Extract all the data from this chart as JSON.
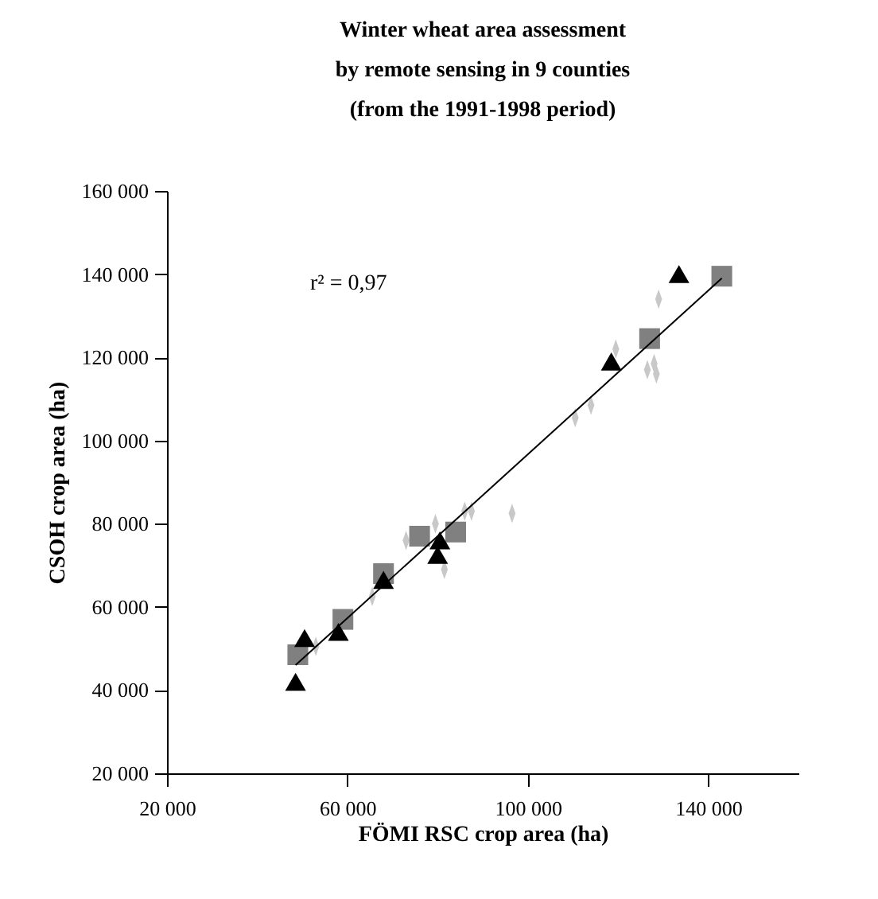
{
  "chart_data": {
    "type": "scatter",
    "title": [
      "Winter wheat area assessment",
      "by remote sensing in 9  counties",
      "(from the 1991-1998 period)"
    ],
    "xlabel": "FÖMI RSC crop area (ha)",
    "ylabel": "CSOH crop area (ha)",
    "xlim": [
      20000,
      160000
    ],
    "xticks": [
      {
        "value": 20000,
        "label": "20 000"
      },
      {
        "value": 60000,
        "label": "60 000"
      },
      {
        "value": 100000,
        "label": "100 000"
      },
      {
        "value": 140000,
        "label": "140 000"
      }
    ],
    "ylim": [
      20000,
      160000
    ],
    "yticks": [
      {
        "value": 20000,
        "label": "20 000"
      },
      {
        "value": 40000,
        "label": "40 000"
      },
      {
        "value": 60000,
        "label": "60 000"
      },
      {
        "value": 80000,
        "label": "80 000"
      },
      {
        "value": 100000,
        "label": "100 000"
      },
      {
        "value": 120000,
        "label": "120 000"
      },
      {
        "value": 140000,
        "label": "140 000"
      },
      {
        "value": 160000,
        "label": "160 000"
      }
    ],
    "grid": false,
    "annotations": [
      "r² = 0,97"
    ],
    "series": [
      {
        "color": "#c8c8c8",
        "marker": "diamond",
        "x": [
          53000,
          65500,
          73000,
          79500,
          81500,
          86000,
          87500,
          96500,
          110500,
          114000,
          119500,
          126500,
          128000,
          128500,
          129000
        ],
        "values": [
          50500,
          62500,
          76000,
          80000,
          69000,
          83000,
          83000,
          82500,
          105500,
          108500,
          122000,
          117000,
          118500,
          116000,
          134000
        ]
      },
      {
        "color": "#808080",
        "marker": "square",
        "x": [
          49000,
          59000,
          68000,
          76000,
          84000,
          127000,
          143000
        ],
        "values": [
          48500,
          57000,
          68000,
          77000,
          78000,
          124500,
          139500
        ]
      },
      {
        "color": "#000000",
        "marker": "triangle",
        "x": [
          48500,
          50500,
          58000,
          68000,
          80500,
          80000,
          118500,
          133500
        ],
        "values": [
          42000,
          52500,
          54000,
          66500,
          76000,
          72500,
          119000,
          140000
        ]
      },
      {
        "type": "line",
        "color": "#000000",
        "line_style": "solid",
        "x": [
          48500,
          143000
        ],
        "values": [
          46000,
          139000
        ]
      }
    ]
  }
}
